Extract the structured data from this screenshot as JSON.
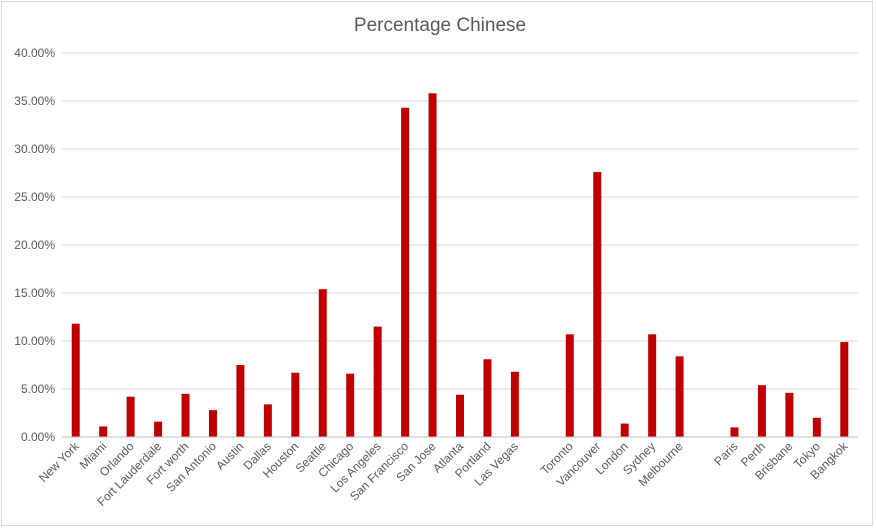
{
  "chart_data": {
    "type": "bar",
    "title": "Percentage Chinese",
    "xlabel": "",
    "ylabel": "",
    "ylim": [
      0,
      0.4
    ],
    "yticks": [
      "0.00%",
      "5.00%",
      "10.00%",
      "15.00%",
      "20.00%",
      "25.00%",
      "30.00%",
      "35.00%",
      "40.00%"
    ],
    "grid": true,
    "bar_color": "#c00000",
    "categories": [
      "New York",
      "Miami",
      "Orlando",
      "Fort Lauderdale",
      "Fort worth",
      "San Antonio",
      "Austin",
      "Dallas",
      "Houston",
      "Seattle",
      "Chicago",
      "Los Angeles",
      "San Francisco",
      "San Jose",
      "Atlanta",
      "Portland",
      "Las Vegas",
      "",
      "Toronto",
      "Vancouver",
      "London",
      "Sydney",
      "Melbourne",
      "",
      "Paris",
      "Perth",
      "Brisbane",
      "Tokyo",
      "Bangkok"
    ],
    "values": [
      0.118,
      0.011,
      0.042,
      0.016,
      0.045,
      0.028,
      0.075,
      0.034,
      0.067,
      0.154,
      0.066,
      0.115,
      0.343,
      0.358,
      0.044,
      0.081,
      0.068,
      null,
      0.107,
      0.276,
      0.014,
      0.107,
      0.084,
      null,
      0.01,
      0.054,
      0.046,
      0.02,
      0.099
    ]
  }
}
